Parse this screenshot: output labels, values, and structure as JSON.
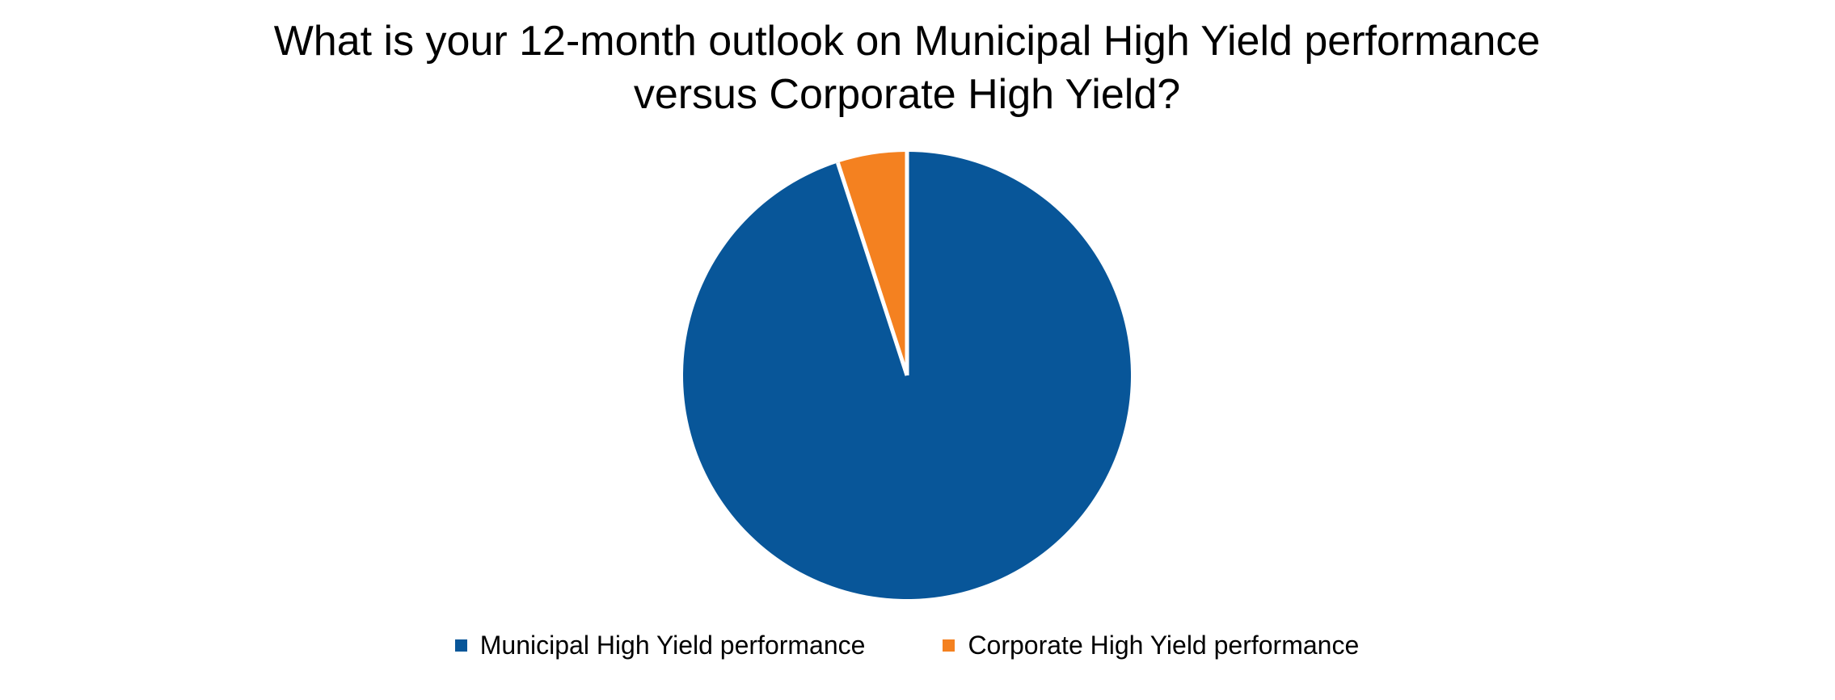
{
  "chart_data": {
    "type": "pie",
    "title": "What is your 12-month outlook on Municipal High Yield performance versus Corporate High Yield?",
    "title_lines": [
      "What is your 12-month outlook on Municipal High Yield performance",
      "versus Corporate High Yield?"
    ],
    "unit": "percent",
    "slices": [
      {
        "label": "Municipal High Yield performance",
        "value": 95,
        "color": "#085699"
      },
      {
        "label": "Corporate High Yield performance",
        "value": 5,
        "color": "#F48120"
      }
    ],
    "start_angle_deg": 0,
    "direction": "clockwise",
    "separator_color": "#FFFFFF",
    "background_color": "#FFFFFF",
    "title_color": "#000000",
    "legend_text_color": "#000000",
    "legend_position": "bottom",
    "data_labels": false,
    "grid": false
  }
}
